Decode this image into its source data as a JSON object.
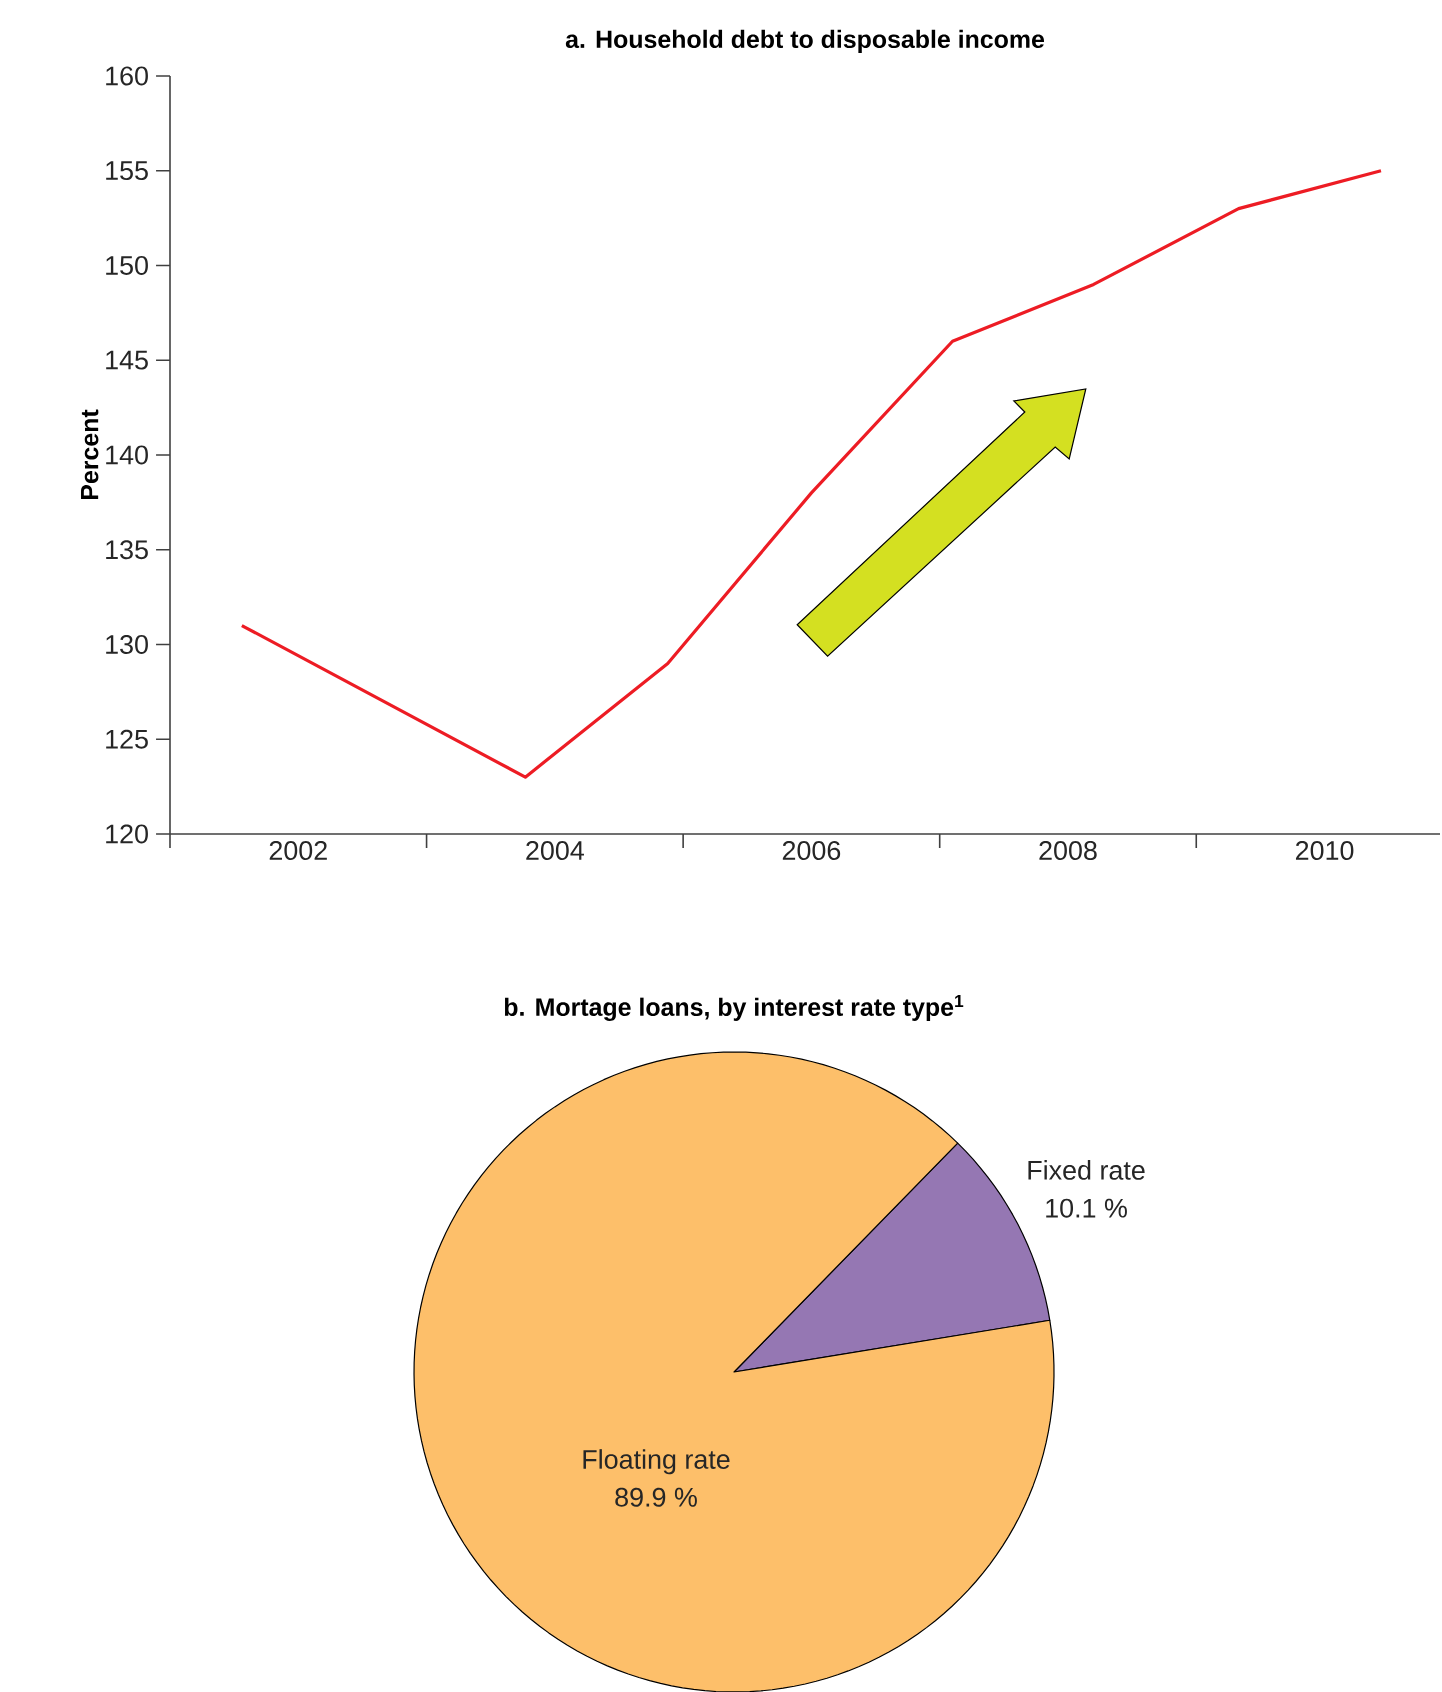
{
  "chart_data": [
    {
      "type": "line",
      "title": "a. Household debt to disposable income",
      "ylabel": "Percent",
      "x": [
        2001.56,
        2003.77,
        2004.88,
        2006.0,
        2007.1,
        2008.2,
        2009.33,
        2010.44
      ],
      "series": [
        {
          "color": "#ed1c24",
          "values": [
            131,
            123,
            129,
            138,
            146,
            149,
            153,
            155
          ]
        }
      ],
      "xlim": [
        2001,
        2010.9
      ],
      "xticks": [
        {
          "value": 2001,
          "label": null
        },
        2002,
        {
          "value": 2003,
          "label": null
        },
        2004,
        {
          "value": 2005,
          "label": null
        },
        2006,
        {
          "value": 2007,
          "label": null
        },
        2008,
        {
          "value": 2009,
          "label": null
        },
        2010
      ],
      "ylim": [
        120,
        160
      ],
      "yticks": [
        120,
        125,
        130,
        135,
        140,
        145,
        150,
        155,
        160
      ],
      "marker": "none",
      "line_style": "solid"
    },
    {
      "type": "pie",
      "title": "b. Mortage loans, by interest rate type$^{1}$",
      "categories": [
        "Fixed rate",
        "Floating rate"
      ],
      "values": [
        10.1,
        89.9
      ],
      "colors": [
        "#9577b3",
        "#fdbf6a"
      ],
      "value_labels": [
        "10.1 %",
        "89.9 %"
      ]
    }
  ]
}
